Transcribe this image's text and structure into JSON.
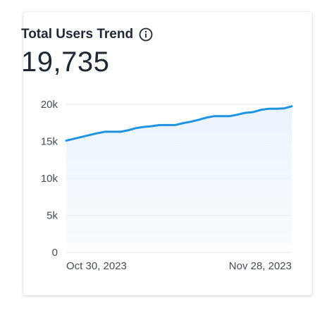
{
  "card": {
    "title": "Total Users Trend",
    "value": "19,735"
  },
  "colors": {
    "line": "#1f93e0",
    "area": "#eaf4fd",
    "grid": "#e3e6ea",
    "text": "#1f2733"
  },
  "chart_data": {
    "type": "area",
    "title": "Total Users Trend",
    "x_start": "2023-10-30",
    "x_end": "2023-11-28",
    "x_tick_labels": [
      "Oct 30, 2023",
      "Nov 28, 2023"
    ],
    "y_tick_labels": [
      "0",
      "5k",
      "10k",
      "15k",
      "20k"
    ],
    "y_ticks": [
      0,
      5000,
      10000,
      15000,
      20000
    ],
    "ylim": [
      0,
      20000
    ],
    "grid": true,
    "x": [
      "2023-10-30",
      "2023-10-31",
      "2023-11-01",
      "2023-11-02",
      "2023-11-03",
      "2023-11-04",
      "2023-11-05",
      "2023-11-06",
      "2023-11-07",
      "2023-11-08",
      "2023-11-09",
      "2023-11-10",
      "2023-11-11",
      "2023-11-12",
      "2023-11-13",
      "2023-11-14",
      "2023-11-15",
      "2023-11-16",
      "2023-11-17",
      "2023-11-18",
      "2023-11-19",
      "2023-11-20",
      "2023-11-21",
      "2023-11-22",
      "2023-11-23",
      "2023-11-24",
      "2023-11-25",
      "2023-11-26",
      "2023-11-27",
      "2023-11-28"
    ],
    "series": [
      {
        "values": [
          15100,
          15350,
          15600,
          15850,
          16100,
          16300,
          16300,
          16300,
          16500,
          16800,
          16950,
          17050,
          17200,
          17200,
          17200,
          17450,
          17650,
          17900,
          18200,
          18400,
          18400,
          18400,
          18600,
          18850,
          18950,
          19250,
          19400,
          19400,
          19450,
          19735
        ]
      }
    ]
  }
}
